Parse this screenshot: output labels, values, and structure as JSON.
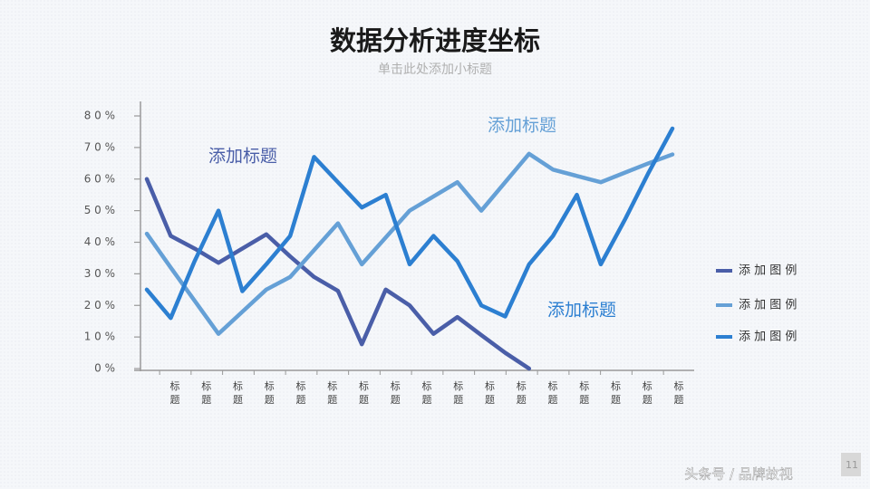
{
  "chart_data": {
    "type": "line",
    "title": "数据分析进度坐标",
    "subtitle": "单击此处添加小标题",
    "categories": [
      null,
      null,
      null,
      null,
      null,
      null,
      null,
      null,
      null,
      null,
      null,
      null,
      null,
      null,
      null,
      null,
      null,
      null,
      null,
      null,
      null,
      null,
      null
    ],
    "axis_labels": [
      "标题",
      "标题",
      "标题",
      "标题",
      "标题",
      "标题",
      "标题",
      "标题",
      "标题",
      "标题",
      "标题",
      "标题",
      "标题",
      "标题",
      "标题",
      "标题",
      "标题"
    ],
    "series": [
      {
        "name": "添 加 图 例",
        "color": "#4a5ea8",
        "values": [
          60,
          42,
          38,
          33.5,
          38,
          42.5,
          35.5,
          29,
          24.6,
          7.7,
          25,
          20,
          11,
          16.3,
          10.6,
          5,
          0,
          null,
          null,
          null,
          null,
          null,
          null
        ]
      },
      {
        "name": "添 加 图 例",
        "color": "#65a0d6",
        "values": [
          42.7,
          32,
          21.5,
          11,
          18,
          25,
          29,
          37.5,
          46,
          33,
          41.5,
          50,
          54.5,
          59,
          50,
          59,
          68,
          63,
          61,
          59,
          62,
          65,
          67.8
        ]
      },
      {
        "name": "添 加 图 例",
        "color": "#2c7fd1",
        "values": [
          25,
          16,
          34,
          50,
          24.5,
          33,
          42,
          67,
          59,
          51,
          55,
          33,
          42,
          34,
          20,
          16.5,
          33,
          42,
          55,
          33,
          47,
          62,
          76
        ]
      }
    ],
    "ylim": [
      0,
      80
    ],
    "yticks": [
      {
        "value": 0,
        "label": "0 %"
      },
      {
        "value": 10,
        "label": "1 0 %"
      },
      {
        "value": 20,
        "label": "2 0 %"
      },
      {
        "value": 30,
        "label": "3 0 %"
      },
      {
        "value": 40,
        "label": "4 0 %"
      },
      {
        "value": 50,
        "label": "5 0 %"
      },
      {
        "value": 60,
        "label": "6 0 %"
      },
      {
        "value": 70,
        "label": "7 0 %"
      },
      {
        "value": 80,
        "label": "8 0 %"
      }
    ],
    "annotations": [
      "添加标题",
      "添加标题",
      "添加标题"
    ],
    "legend": "right",
    "grid": false
  },
  "watermark": "头条号 / 品牌故视",
  "page_number": "11"
}
